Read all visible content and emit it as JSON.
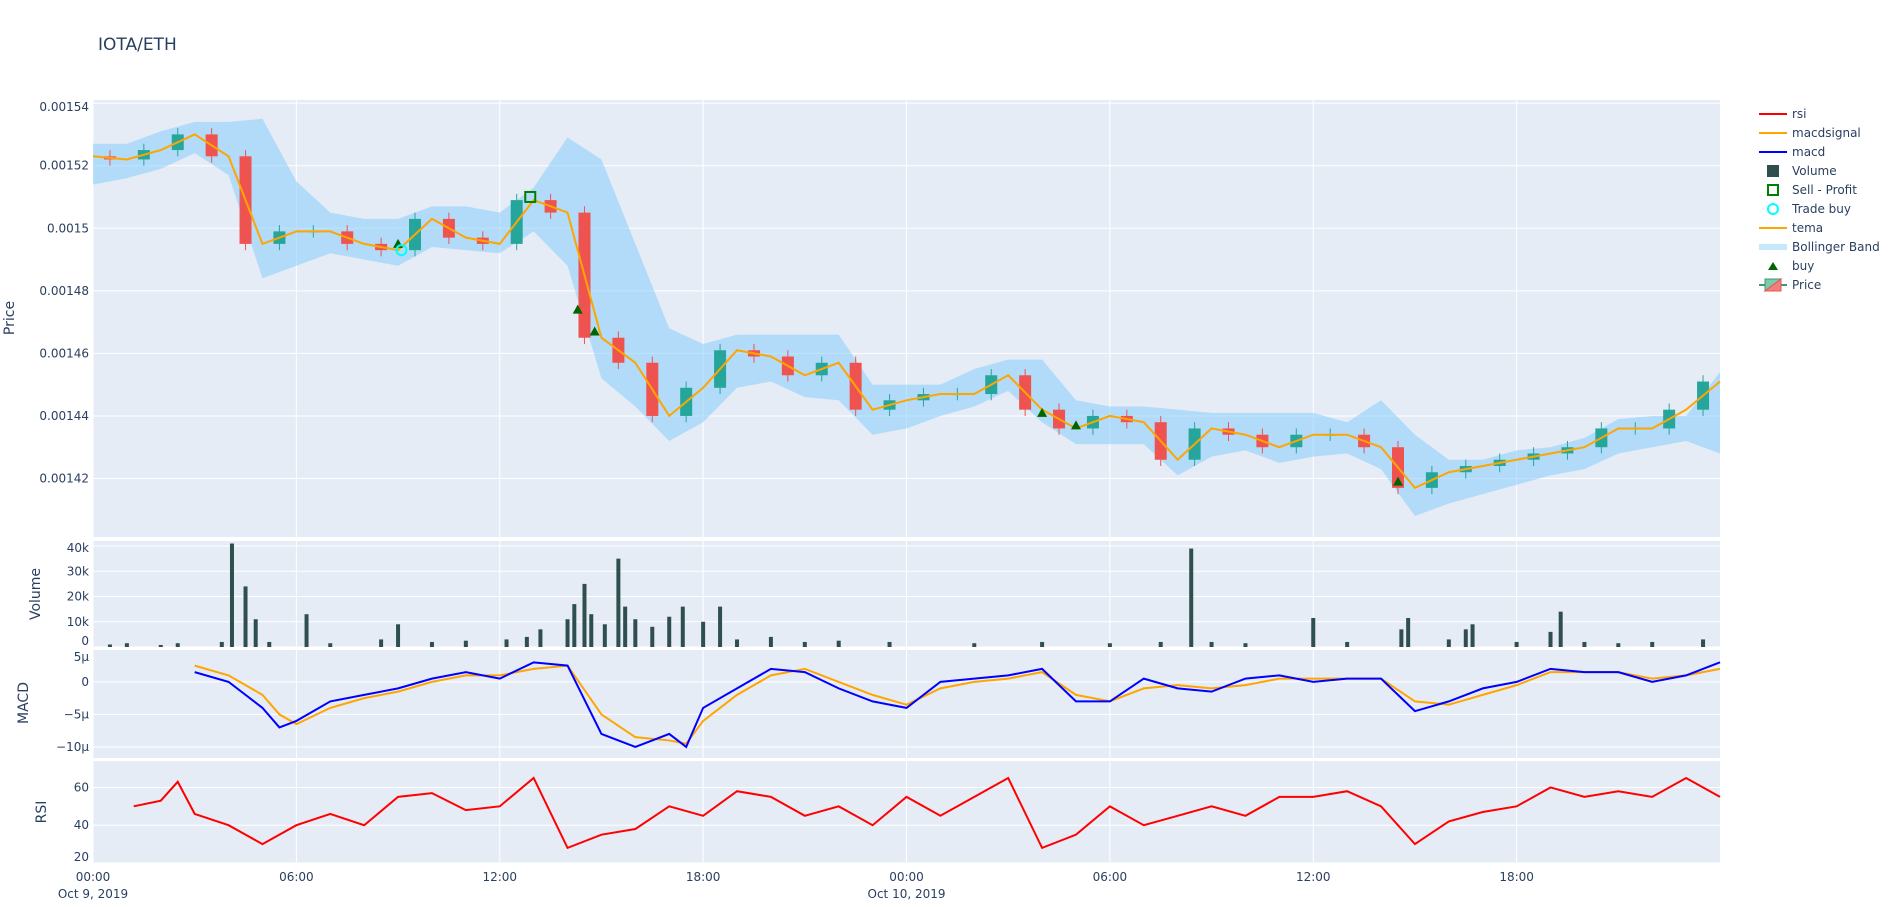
{
  "title": "IOTA/ETH",
  "colors": {
    "plot_bg": "#e5ecf6",
    "grid": "#ffffff",
    "rsi": "#ff0000",
    "macdsignal": "#ffa500",
    "macd": "#0000ff",
    "volume": "#2f4f4f",
    "sell": "#008000",
    "trade_buy": "#00ffff",
    "tema": "#ffa500",
    "bollinger": "rgba(135,206,250,0.55)",
    "buy": "#006400",
    "up": "#26a69a",
    "down": "#ef5350"
  },
  "legend": [
    {
      "name": "rsi",
      "symbol": "line",
      "color": "#ff0000"
    },
    {
      "name": "macdsignal",
      "symbol": "line",
      "color": "#ffa500"
    },
    {
      "name": "macd",
      "symbol": "line",
      "color": "#0000ff"
    },
    {
      "name": "Volume",
      "symbol": "square",
      "color": "#2f4f4f"
    },
    {
      "name": "Sell - Profit",
      "symbol": "square-open",
      "color": "#008000"
    },
    {
      "name": "Trade buy",
      "symbol": "circle-open",
      "color": "#00ffff"
    },
    {
      "name": "tema",
      "symbol": "line",
      "color": "#ffa500"
    },
    {
      "name": "Bollinger Band",
      "symbol": "band",
      "color": "#c6e8fb"
    },
    {
      "name": "buy",
      "symbol": "triangle",
      "color": "#006400"
    },
    {
      "name": "Price",
      "symbol": "candle",
      "color": "#26a69a"
    }
  ],
  "chart_data": {
    "type": "candlestick",
    "x_axis": {
      "range": [
        "2019-10-09 00:00",
        "2019-10-11 00:00"
      ],
      "ticks": [
        {
          "label": "00:00",
          "sub": "Oct 9, 2019",
          "hour": 0
        },
        {
          "label": "06:00",
          "sub": "",
          "hour": 6
        },
        {
          "label": "12:00",
          "sub": "",
          "hour": 12
        },
        {
          "label": "18:00",
          "sub": "",
          "hour": 18
        },
        {
          "label": "00:00",
          "sub": "Oct 10, 2019",
          "hour": 24
        },
        {
          "label": "06:00",
          "sub": "",
          "hour": 30
        },
        {
          "label": "12:00",
          "sub": "",
          "hour": 36
        },
        {
          "label": "18:00",
          "sub": "",
          "hour": 42
        }
      ]
    },
    "panels": {
      "price": {
        "ylabel": "Price",
        "ylim": [
          0.0014013,
          0.001541
        ],
        "ticks": [
          {
            "v": 0.00154,
            "label": "0.00154"
          },
          {
            "v": 0.00152,
            "label": "0.00152"
          },
          {
            "v": 0.0015,
            "label": "0.0015"
          },
          {
            "v": 0.00148,
            "label": "0.00148"
          },
          {
            "v": 0.00146,
            "label": "0.00146"
          },
          {
            "v": 0.00144,
            "label": "0.00144"
          },
          {
            "v": 0.00142,
            "label": "0.00142"
          }
        ]
      },
      "volume": {
        "ylabel": "Volume",
        "ylim": [
          0,
          42000
        ],
        "ticks": [
          {
            "v": 0,
            "label": "0"
          },
          {
            "v": 10000,
            "label": "10k"
          },
          {
            "v": 20000,
            "label": "20k"
          },
          {
            "v": 30000,
            "label": "30k"
          },
          {
            "v": 40000,
            "label": "40k"
          }
        ]
      },
      "macd": {
        "ylabel": "MACD",
        "ylim": [
          -11.7,
          4.9
        ],
        "ticks": [
          {
            "v": 5,
            "label": "5µ"
          },
          {
            "v": 0,
            "label": "0"
          },
          {
            "v": -5,
            "label": "−5µ"
          },
          {
            "v": -10,
            "label": "−10µ"
          }
        ]
      },
      "rsi": {
        "ylabel": "RSI",
        "ylim": [
          20,
          74
        ],
        "ticks": [
          {
            "v": 20,
            "label": "20"
          },
          {
            "v": 40,
            "label": "40"
          },
          {
            "v": 60,
            "label": "60"
          }
        ]
      }
    },
    "hours": [
      0,
      1,
      2,
      3,
      4,
      5,
      6,
      7,
      8,
      9,
      10,
      11,
      12,
      13,
      14,
      15,
      16,
      17,
      18,
      19,
      20,
      21,
      22,
      23,
      24,
      25,
      26,
      27,
      28,
      29,
      30,
      31,
      32,
      33,
      34,
      35,
      36,
      37,
      38,
      39,
      40,
      41,
      42,
      43,
      44,
      45,
      46,
      47,
      48
    ],
    "close": [
      0.001523,
      0.001522,
      0.001525,
      0.00153,
      0.001523,
      0.001495,
      0.001499,
      0.001499,
      0.001495,
      0.001493,
      0.001503,
      0.001497,
      0.001495,
      0.001509,
      0.001505,
      0.001465,
      0.001457,
      0.00144,
      0.001449,
      0.001461,
      0.001459,
      0.001453,
      0.001457,
      0.001442,
      0.001445,
      0.001447,
      0.001447,
      0.001453,
      0.001442,
      0.001436,
      0.00144,
      0.001438,
      0.001426,
      0.001436,
      0.001434,
      0.00143,
      0.001434,
      0.001434,
      0.00143,
      0.001417,
      0.001422,
      0.001424,
      0.001426,
      0.001428,
      0.00143,
      0.001436,
      0.001436,
      0.001442,
      0.001451
    ],
    "tema": [
      0.001523,
      0.001522,
      0.001525,
      0.00153,
      0.001523,
      0.001495,
      0.001499,
      0.001499,
      0.001495,
      0.001493,
      0.001503,
      0.001497,
      0.001495,
      0.001509,
      0.001505,
      0.001465,
      0.001457,
      0.00144,
      0.001449,
      0.001461,
      0.001459,
      0.001453,
      0.001457,
      0.001442,
      0.001445,
      0.001447,
      0.001447,
      0.001453,
      0.001442,
      0.001436,
      0.00144,
      0.001438,
      0.001426,
      0.001436,
      0.001434,
      0.00143,
      0.001434,
      0.001434,
      0.00143,
      0.001417,
      0.001422,
      0.001424,
      0.001426,
      0.001428,
      0.00143,
      0.001436,
      0.001436,
      0.001442,
      0.001451
    ],
    "bb_upper": [
      0.001527,
      0.001527,
      0.001531,
      0.001534,
      0.001534,
      0.001535,
      0.001515,
      0.001505,
      0.001503,
      0.001503,
      0.001507,
      0.001507,
      0.001505,
      0.001513,
      0.001529,
      0.001522,
      0.001495,
      0.001468,
      0.001463,
      0.001466,
      0.001466,
      0.001466,
      0.001466,
      0.00145,
      0.00145,
      0.00145,
      0.001455,
      0.001458,
      0.001458,
      0.001445,
      0.001443,
      0.001443,
      0.001442,
      0.001441,
      0.001441,
      0.001441,
      0.001441,
      0.001438,
      0.001445,
      0.001434,
      0.001426,
      0.001426,
      0.001429,
      0.00143,
      0.001433,
      0.001439,
      0.00144,
      0.00144,
      0.001454
    ],
    "bb_lower": [
      0.001514,
      0.001516,
      0.001519,
      0.001524,
      0.001517,
      0.001484,
      0.001488,
      0.001492,
      0.00149,
      0.001488,
      0.001494,
      0.001493,
      0.001492,
      0.001499,
      0.001488,
      0.001452,
      0.001443,
      0.001432,
      0.001438,
      0.001449,
      0.001451,
      0.001446,
      0.001445,
      0.001434,
      0.001436,
      0.00144,
      0.001443,
      0.001448,
      0.001438,
      0.001431,
      0.001431,
      0.001431,
      0.001421,
      0.001427,
      0.001429,
      0.001425,
      0.001427,
      0.001428,
      0.001423,
      0.001408,
      0.001412,
      0.001415,
      0.001418,
      0.001421,
      0.001423,
      0.001428,
      0.00143,
      0.001432,
      0.001428
    ],
    "volume_bars": [
      [
        0.5,
        1000
      ],
      [
        1,
        1500
      ],
      [
        2,
        800
      ],
      [
        2.5,
        1500
      ],
      [
        3.8,
        2000
      ],
      [
        4.1,
        41000
      ],
      [
        4.5,
        24000
      ],
      [
        4.8,
        11000
      ],
      [
        5.2,
        2000
      ],
      [
        6.3,
        13000
      ],
      [
        7,
        1500
      ],
      [
        8.5,
        3000
      ],
      [
        9,
        9000
      ],
      [
        10,
        2000
      ],
      [
        11,
        2500
      ],
      [
        12.2,
        3000
      ],
      [
        12.8,
        4000
      ],
      [
        13.2,
        7000
      ],
      [
        14,
        11000
      ],
      [
        14.2,
        17000
      ],
      [
        14.5,
        25000
      ],
      [
        14.7,
        13000
      ],
      [
        15.1,
        9000
      ],
      [
        15.5,
        35000
      ],
      [
        15.7,
        16000
      ],
      [
        16,
        11000
      ],
      [
        16.5,
        8000
      ],
      [
        17,
        12000
      ],
      [
        17.4,
        16000
      ],
      [
        18,
        10000
      ],
      [
        18.5,
        16000
      ],
      [
        19,
        3000
      ],
      [
        20,
        4000
      ],
      [
        21,
        2000
      ],
      [
        22,
        2500
      ],
      [
        23.5,
        2000
      ],
      [
        26,
        1500
      ],
      [
        28,
        2000
      ],
      [
        30,
        1500
      ],
      [
        31.5,
        2000
      ],
      [
        32.4,
        39000
      ],
      [
        33,
        2000
      ],
      [
        34,
        1500
      ],
      [
        36,
        11500
      ],
      [
        37,
        2000
      ],
      [
        38.6,
        7000
      ],
      [
        38.8,
        11500
      ],
      [
        40,
        3000
      ],
      [
        40.5,
        7000
      ],
      [
        40.7,
        9000
      ],
      [
        42,
        2000
      ],
      [
        43,
        6000
      ],
      [
        43.3,
        14000
      ],
      [
        44,
        2000
      ],
      [
        45,
        1500
      ],
      [
        46,
        2000
      ],
      [
        47.5,
        3000
      ]
    ],
    "macd_hours": [
      3,
      4,
      5,
      5.5,
      6,
      7,
      8,
      9,
      10,
      11,
      12,
      13,
      14,
      15,
      16,
      17,
      17.5,
      18,
      19,
      20,
      21,
      22,
      23,
      24,
      25,
      26,
      27,
      28,
      29,
      30,
      31,
      32,
      33,
      34,
      35,
      36,
      37,
      38,
      39,
      40,
      41,
      42,
      43,
      44,
      45,
      46,
      47,
      48
    ],
    "macd": [
      1.5,
      0,
      -4,
      -7,
      -6,
      -3,
      -2,
      -1,
      0.5,
      1.5,
      0.5,
      3,
      2.5,
      -8,
      -10,
      -8,
      -10,
      -4,
      -1,
      2,
      1.5,
      -1,
      -3,
      -4,
      0,
      0.5,
      1,
      2,
      -3,
      -3,
      0.5,
      -1,
      -1.5,
      0.5,
      1,
      0,
      0.5,
      0.5,
      -4.5,
      -3,
      -1,
      0,
      2,
      1.5,
      1.5,
      0,
      1,
      3
    ],
    "macdsignal": [
      2.5,
      1,
      -2,
      -5,
      -6.5,
      -4,
      -2.5,
      -1.5,
      0,
      1,
      1,
      2,
      2.5,
      -5,
      -8.5,
      -9,
      -9.5,
      -6,
      -2,
      1,
      2,
      0,
      -2,
      -3.5,
      -1,
      0,
      0.5,
      1.5,
      -2,
      -3,
      -1,
      -0.5,
      -1,
      -0.5,
      0.5,
      0.5,
      0.5,
      0.5,
      -3,
      -3.5,
      -2,
      -0.5,
      1.5,
      1.5,
      1.5,
      0.5,
      1,
      2
    ],
    "rsi_hours": [
      1.2,
      2,
      2.5,
      3,
      4,
      5,
      6,
      7,
      8,
      9,
      10,
      11,
      12,
      13,
      14,
      15,
      16,
      17,
      18,
      19,
      20,
      21,
      22,
      23,
      24,
      25,
      26,
      27,
      28,
      29,
      30,
      31,
      32,
      33,
      34,
      35,
      36,
      37,
      38,
      39,
      40,
      41,
      42,
      43,
      44,
      45,
      46,
      47,
      48
    ],
    "rsi": [
      50,
      53,
      63,
      46,
      40,
      30,
      40,
      46,
      40,
      55,
      57,
      48,
      50,
      65,
      28,
      35,
      38,
      50,
      45,
      58,
      55,
      45,
      50,
      40,
      55,
      45,
      55,
      65,
      28,
      35,
      50,
      40,
      45,
      50,
      45,
      55,
      55,
      58,
      50,
      30,
      42,
      47,
      50,
      60,
      55,
      58,
      55,
      65,
      55
    ],
    "buy_signals": [
      [
        9,
        0.001495
      ],
      [
        14.3,
        0.001474
      ],
      [
        14.8,
        0.001467
      ],
      [
        28,
        0.001441
      ],
      [
        29,
        0.001437
      ],
      [
        38.5,
        0.001419
      ]
    ],
    "sell_profit": [
      [
        12.9,
        0.00151
      ]
    ],
    "trade_buy": [
      [
        9.1,
        0.001493
      ]
    ]
  }
}
